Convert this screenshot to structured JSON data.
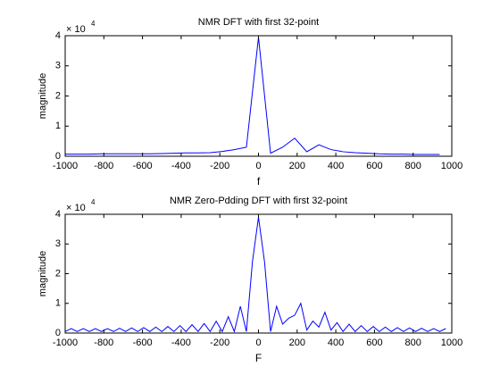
{
  "chart_data": [
    {
      "type": "line",
      "title": "NMR DFT with first 32-point",
      "xlabel": "f",
      "ylabel": "magnitude",
      "y_multiplier": {
        "base": "× 10",
        "exponent": "4"
      },
      "xlim": [
        -1000,
        1000
      ],
      "xticks": [
        -1000,
        -800,
        -600,
        -400,
        -200,
        0,
        200,
        400,
        600,
        800,
        1000
      ],
      "ylim": [
        0,
        4
      ],
      "yticks": [
        0,
        1,
        2,
        3,
        4
      ],
      "x": [
        -1000,
        -937.5,
        -875,
        -812.5,
        -750,
        -687.5,
        -625,
        -562.5,
        -500,
        -437.5,
        -375,
        -312.5,
        -250,
        -187.5,
        -125,
        -62.5,
        0,
        62.5,
        125,
        187.5,
        250,
        312.5,
        375,
        437.5,
        500,
        562.5,
        625,
        687.5,
        750,
        812.5,
        875,
        937.5
      ],
      "series": [
        {
          "color": "#0000ff",
          "values": [
            0.07,
            0.07,
            0.07,
            0.08,
            0.08,
            0.08,
            0.08,
            0.08,
            0.09,
            0.1,
            0.11,
            0.11,
            0.12,
            0.16,
            0.22,
            0.3,
            3.95,
            0.1,
            0.3,
            0.6,
            0.15,
            0.38,
            0.22,
            0.15,
            0.12,
            0.1,
            0.08,
            0.07,
            0.07,
            0.06,
            0.06,
            0.06
          ]
        }
      ]
    },
    {
      "type": "line",
      "title": "NMR Zero-Pdding DFT with first 32-point",
      "xlabel": "F",
      "ylabel": "magnitude",
      "y_multiplier": {
        "base": "× 10",
        "exponent": "4"
      },
      "xlim": [
        -1000,
        1000
      ],
      "xticks": [
        -1000,
        -800,
        -600,
        -400,
        -200,
        0,
        200,
        400,
        600,
        800,
        1000
      ],
      "ylim": [
        0,
        4
      ],
      "yticks": [
        0,
        1,
        2,
        3,
        4
      ],
      "x": [
        -1000,
        -968.75,
        -937.5,
        -906.25,
        -875,
        -843.75,
        -812.5,
        -781.25,
        -750,
        -718.75,
        -687.5,
        -656.25,
        -625,
        -593.75,
        -562.5,
        -531.25,
        -500,
        -468.75,
        -437.5,
        -406.25,
        -375,
        -343.75,
        -312.5,
        -281.25,
        -250,
        -218.75,
        -187.5,
        -156.25,
        -125,
        -93.75,
        -62.5,
        -31.25,
        0,
        31.25,
        62.5,
        93.75,
        125,
        156.25,
        187.5,
        218.75,
        250,
        281.25,
        312.5,
        343.75,
        375,
        406.25,
        437.5,
        468.75,
        500,
        531.25,
        562.5,
        593.75,
        625,
        656.25,
        687.5,
        718.75,
        750,
        781.25,
        812.5,
        843.75,
        875,
        906.25,
        937.5,
        968.75
      ],
      "series": [
        {
          "color": "#0000ff",
          "values": [
            0.05,
            0.15,
            0.05,
            0.15,
            0.05,
            0.15,
            0.05,
            0.15,
            0.05,
            0.16,
            0.05,
            0.17,
            0.05,
            0.18,
            0.05,
            0.2,
            0.05,
            0.22,
            0.05,
            0.25,
            0.05,
            0.28,
            0.05,
            0.32,
            0.05,
            0.4,
            0.05,
            0.55,
            0.05,
            0.9,
            0.05,
            2.4,
            3.9,
            2.4,
            0.05,
            0.9,
            0.3,
            0.5,
            0.6,
            1.0,
            0.1,
            0.4,
            0.2,
            0.7,
            0.1,
            0.35,
            0.05,
            0.3,
            0.05,
            0.25,
            0.05,
            0.22,
            0.05,
            0.2,
            0.05,
            0.18,
            0.05,
            0.17,
            0.05,
            0.16,
            0.05,
            0.15,
            0.05,
            0.15
          ]
        }
      ]
    }
  ]
}
